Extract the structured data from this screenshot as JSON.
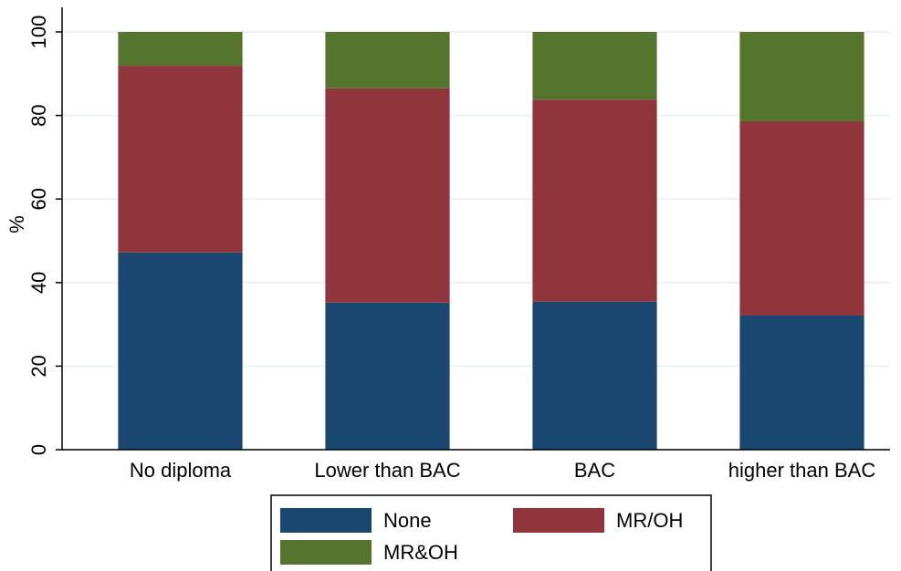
{
  "chart_data": {
    "type": "stacked-bar",
    "y_label": "%",
    "categories": [
      "No diploma",
      "Lower than BAC",
      "BAC",
      "higher than BAC"
    ],
    "series": [
      {
        "name": "None",
        "color": "#1a476f",
        "values": [
          47.2,
          35.2,
          35.4,
          32.1
        ]
      },
      {
        "name": "MR/OH",
        "color": "#90353b",
        "values": [
          44.7,
          51.3,
          48.4,
          46.5
        ]
      },
      {
        "name": "MR&OH",
        "color": "#55752f",
        "values": [
          8.1,
          13.5,
          16.2,
          21.4
        ]
      }
    ],
    "ylim": [
      0,
      104
    ],
    "yticks": [
      0,
      20,
      40,
      60,
      80,
      100
    ],
    "grid": true
  }
}
